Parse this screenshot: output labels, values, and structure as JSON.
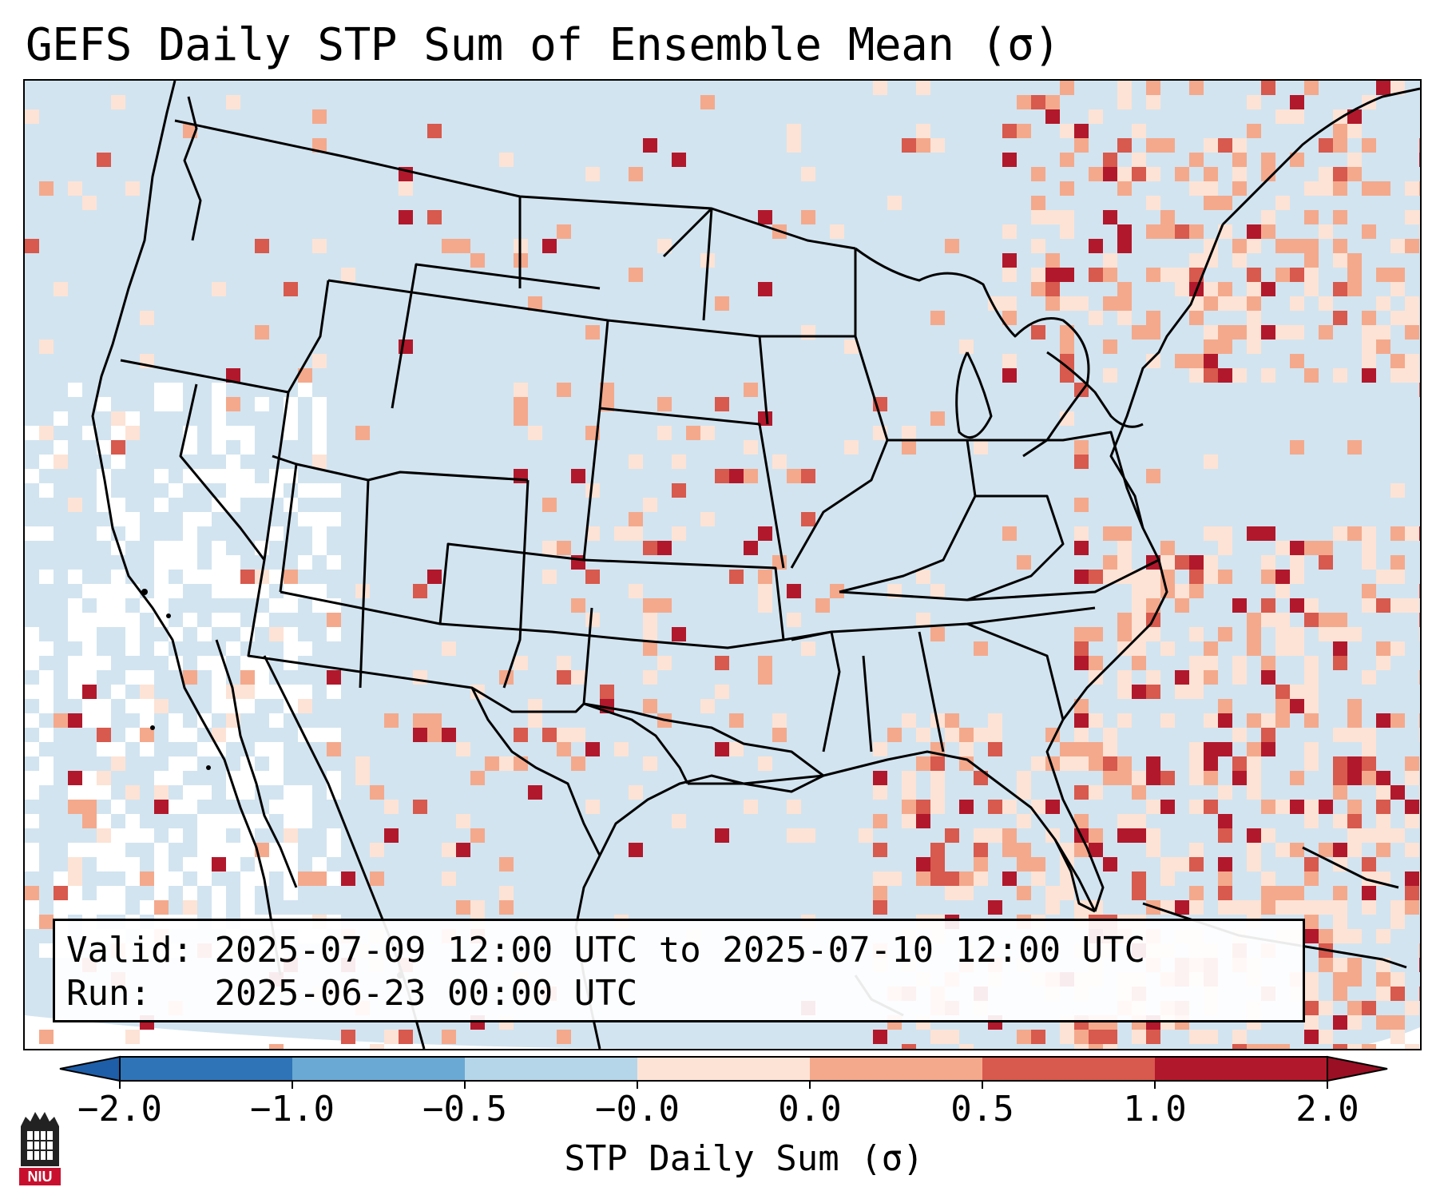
{
  "title": "GEFS Daily STP Sum of Ensemble Mean (σ)",
  "info": {
    "valid_label": "Valid:",
    "valid_value": "2025-07-09 12:00 UTC to 2025-07-10 12:00 UTC",
    "run_label": "Run:",
    "run_value": "2025-06-23 00:00 UTC"
  },
  "colorbar": {
    "label": "STP Daily Sum (σ)",
    "ticks": [
      "−2.0",
      "−1.0",
      "−0.5",
      "−0.0",
      "0.0",
      "0.5",
      "1.0",
      "2.0"
    ],
    "colors": [
      "#2f74b7",
      "#6aa9d3",
      "#b5d6e9",
      "#e8f1f7",
      "#fde3d5",
      "#f4a98c",
      "#d8594d",
      "#b2182b"
    ],
    "extend": "both"
  },
  "map": {
    "background_color": "#d2e4f0",
    "land_color": "#d2e4f0",
    "outside_color": "#ffffff",
    "border_color": "#000000"
  },
  "logo": {
    "text": "NIU",
    "color": "#c8102e"
  }
}
